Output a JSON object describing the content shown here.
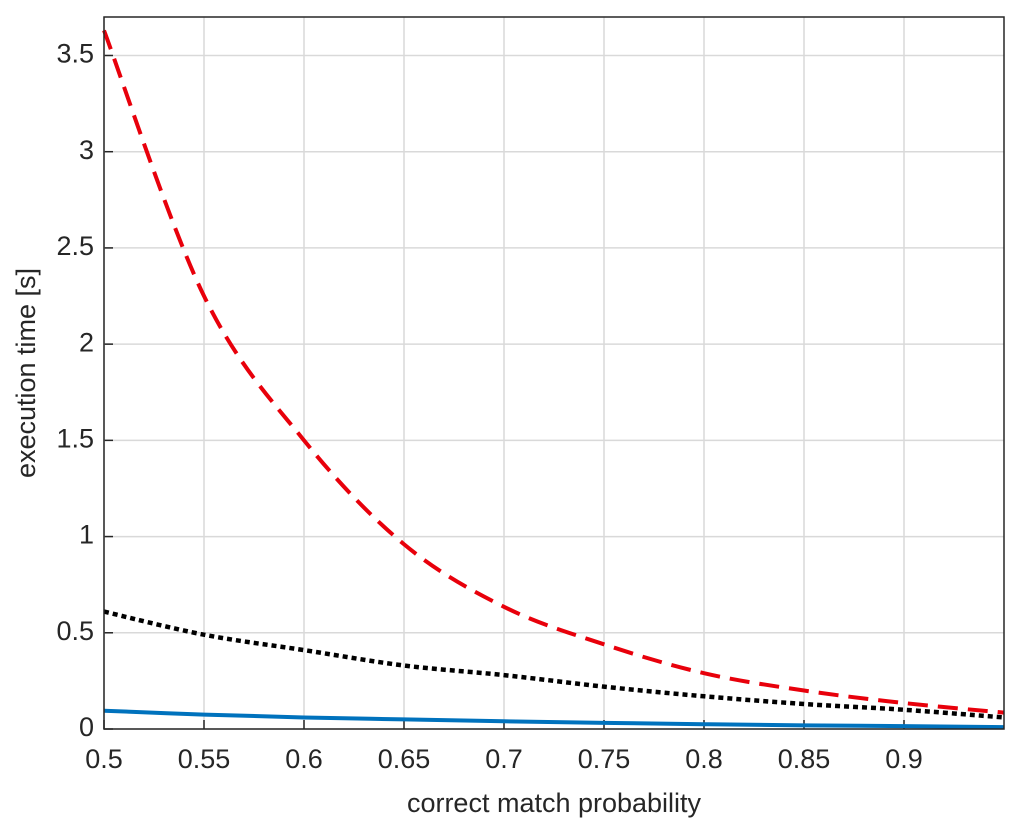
{
  "chart_data": {
    "type": "line",
    "x_label": "correct match probability",
    "y_label": "execution time [s]",
    "x": [
      0.5,
      0.55,
      0.6,
      0.65,
      0.7,
      0.75,
      0.8,
      0.85,
      0.9,
      0.95
    ],
    "series": [
      {
        "color": "#e8000b",
        "dash": "dashed",
        "values": [
          3.63,
          2.25,
          1.5,
          0.96,
          0.635,
          0.44,
          0.29,
          0.2,
          0.135,
          0.085
        ]
      },
      {
        "color": "#000000",
        "dash": "dotted",
        "values": [
          0.61,
          0.49,
          0.41,
          0.33,
          0.28,
          0.22,
          0.17,
          0.13,
          0.1,
          0.06
        ]
      },
      {
        "color": "#0072bd",
        "dash": "solid",
        "values": [
          0.095,
          0.075,
          0.06,
          0.05,
          0.04,
          0.032,
          0.025,
          0.019,
          0.015,
          0.01
        ]
      }
    ],
    "xlim": [
      0.5,
      0.95
    ],
    "xticks": [
      0.5,
      0.55,
      0.6,
      0.65,
      0.7,
      0.75,
      0.8,
      0.85,
      0.9
    ],
    "ylim": [
      0,
      3.7
    ],
    "yticks": [
      0,
      0.5,
      1,
      1.5,
      2,
      2.5,
      3,
      3.5
    ],
    "grid": true
  }
}
